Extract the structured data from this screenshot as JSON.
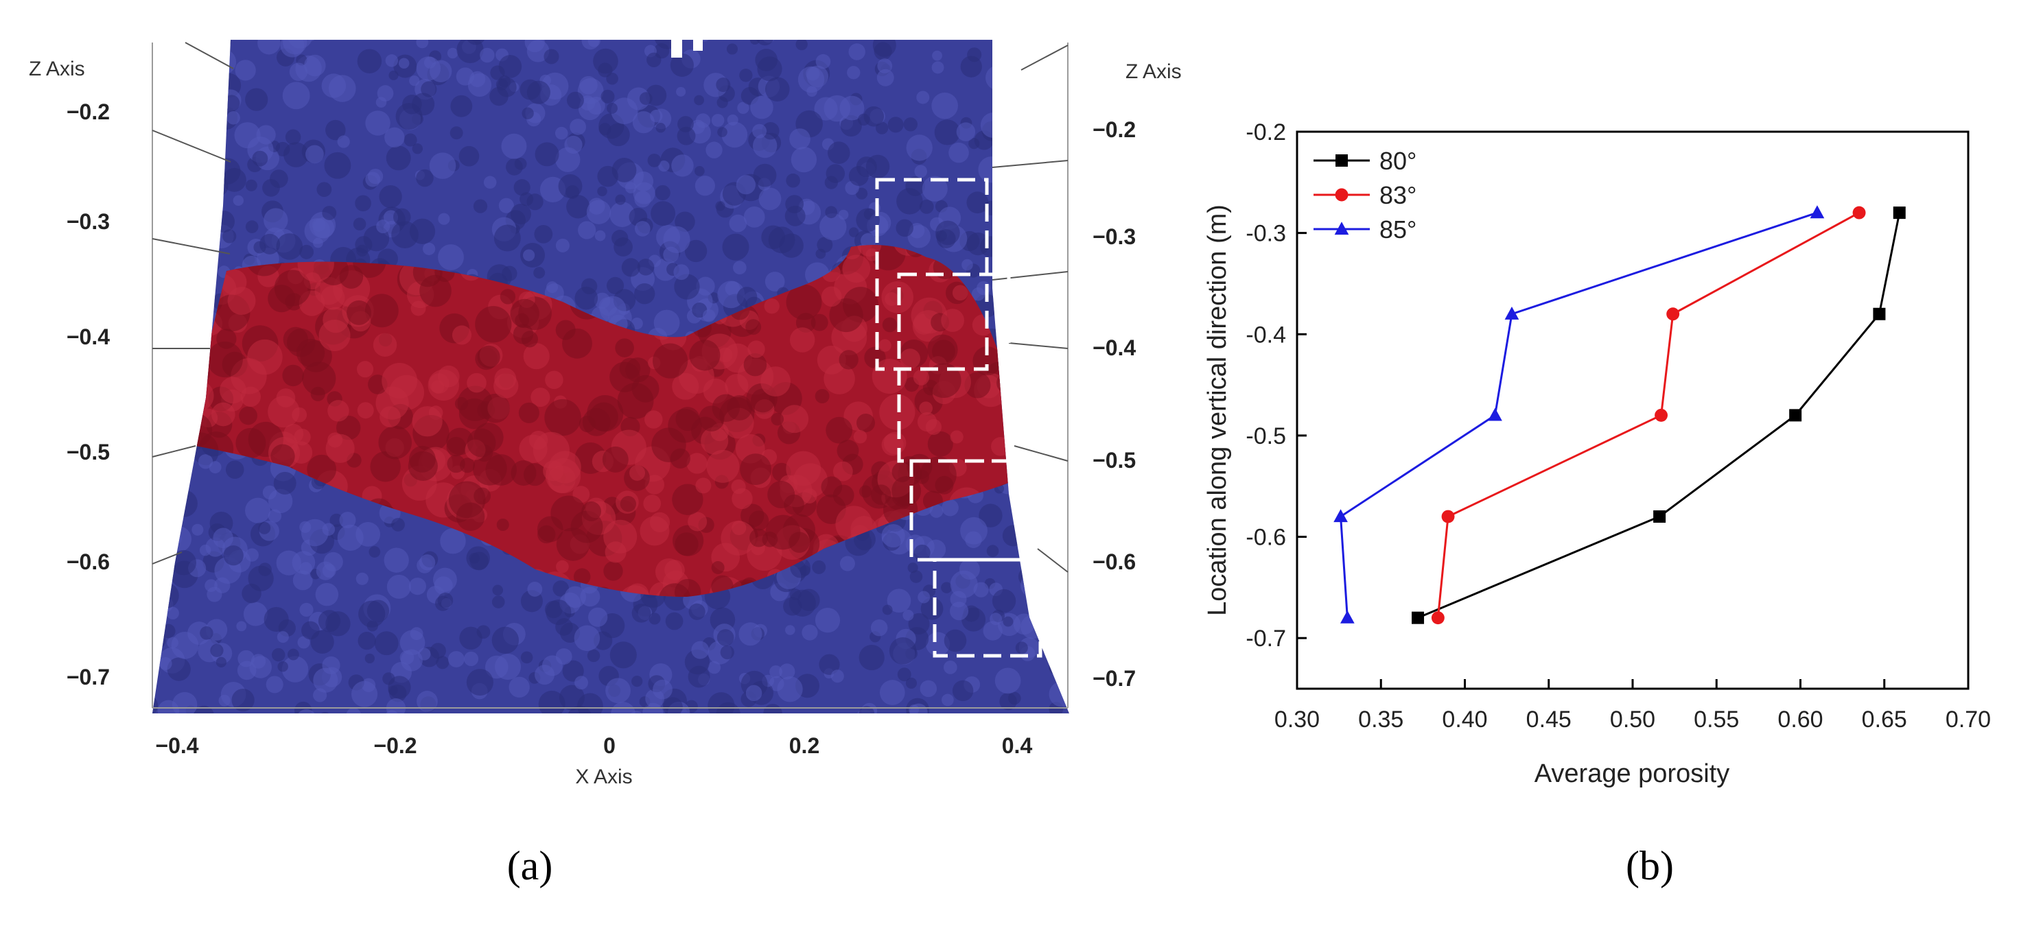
{
  "panel_a": {
    "caption": "(a)",
    "x_axis_label": "X Axis",
    "z_axis_label_left": "Z Axis",
    "z_axis_label_right": "Z Axis",
    "x_ticks": [
      "−0.4",
      "−0.2",
      "0",
      "0.2",
      "0.4"
    ],
    "z_ticks_left": [
      "−0.2",
      "−0.3",
      "−0.4",
      "−0.5",
      "−0.6",
      "−0.7"
    ],
    "z_ticks_right": [
      "−0.2",
      "−0.3",
      "−0.4",
      "−0.5",
      "−0.6",
      "−0.7"
    ],
    "colors": {
      "blue_particles": "#3a3f9a",
      "red_particles": "#a3162a",
      "dashed_box": "#ffffff"
    }
  },
  "panel_b": {
    "caption": "(b)"
  },
  "chart_data": {
    "type": "line",
    "title": "",
    "xlabel": "Average porosity",
    "ylabel": "Location along vertical direction (m)",
    "xlim": [
      0.3,
      0.7
    ],
    "ylim": [
      -0.75,
      -0.2
    ],
    "x_ticks": [
      "0.30",
      "0.35",
      "0.40",
      "0.45",
      "0.50",
      "0.55",
      "0.60",
      "0.65",
      "0.70"
    ],
    "y_ticks": [
      "-0.2",
      "-0.3",
      "-0.4",
      "-0.5",
      "-0.6",
      "-0.7"
    ],
    "legend_position": "top-left",
    "series": [
      {
        "name": "80°",
        "color": "#000000",
        "marker": "square",
        "points": [
          [
            0.659,
            -0.28
          ],
          [
            0.647,
            -0.38
          ],
          [
            0.597,
            -0.48
          ],
          [
            0.516,
            -0.58
          ],
          [
            0.372,
            -0.68
          ]
        ]
      },
      {
        "name": "83°",
        "color": "#e8181b",
        "marker": "circle",
        "points": [
          [
            0.635,
            -0.28
          ],
          [
            0.524,
            -0.38
          ],
          [
            0.517,
            -0.48
          ],
          [
            0.39,
            -0.58
          ],
          [
            0.384,
            -0.68
          ]
        ]
      },
      {
        "name": "85°",
        "color": "#1c1ce0",
        "marker": "triangle",
        "points": [
          [
            0.61,
            -0.28
          ],
          [
            0.428,
            -0.38
          ],
          [
            0.418,
            -0.48
          ],
          [
            0.326,
            -0.58
          ],
          [
            0.33,
            -0.68
          ]
        ]
      }
    ]
  }
}
